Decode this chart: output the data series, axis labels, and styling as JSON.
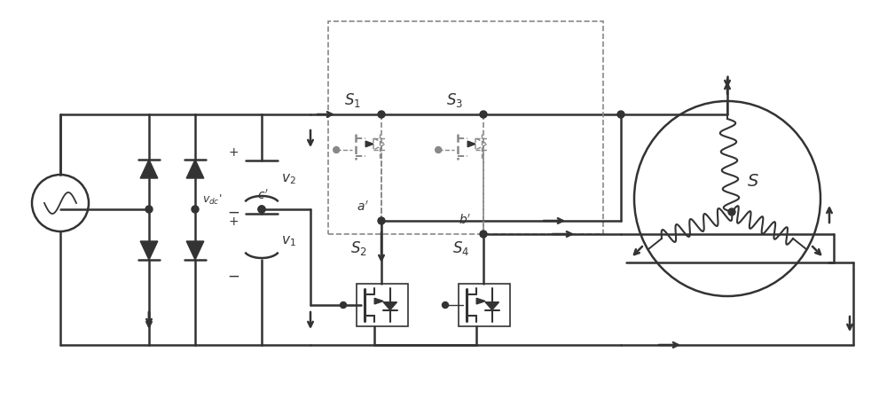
{
  "bg_color": "#ffffff",
  "dc": "#333333",
  "dsc": "#888888",
  "figsize": [
    10.0,
    4.6
  ],
  "dpi": 100,
  "lw": 1.4,
  "lw2": 1.8
}
